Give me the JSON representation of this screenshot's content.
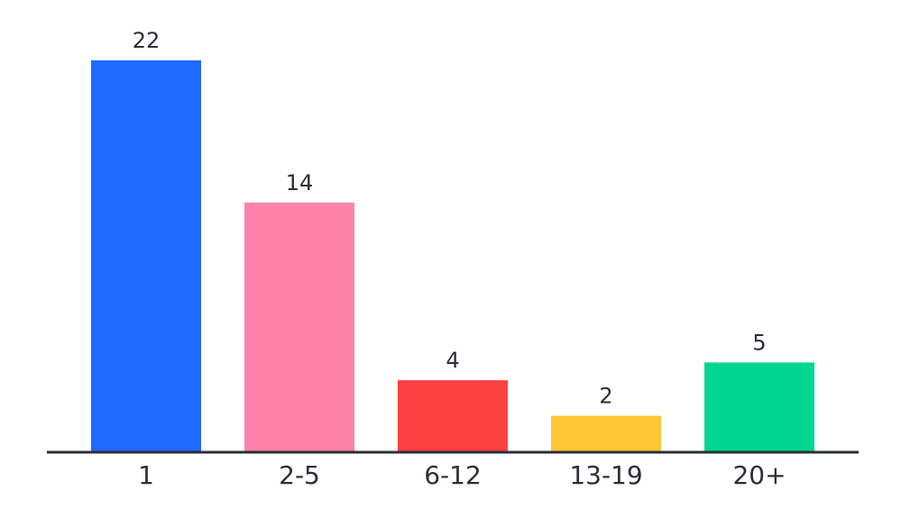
{
  "chart_data": {
    "type": "bar",
    "categories": [
      "1",
      "2-5",
      "6-12",
      "13-19",
      "20+"
    ],
    "values": [
      22,
      14,
      4,
      2,
      5
    ],
    "colors": [
      "#1f6bff",
      "#ff82aa",
      "#ff4040",
      "#ffc637",
      "#00d68f"
    ]
  }
}
